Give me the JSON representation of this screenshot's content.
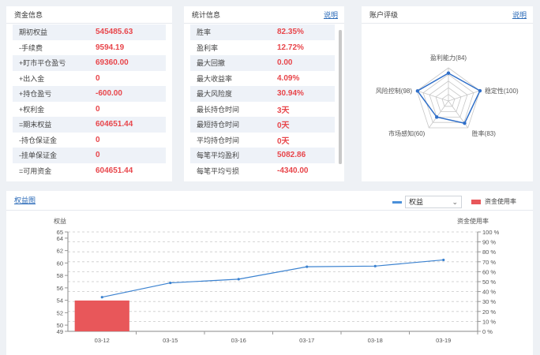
{
  "capital": {
    "title": "资金信息",
    "rows": [
      {
        "label": "期初权益",
        "value": "545485.63"
      },
      {
        "label": "-手续费",
        "value": "9594.19"
      },
      {
        "label": "+盯市平仓盈亏",
        "value": "69360.00"
      },
      {
        "label": "+出入金",
        "value": "0"
      },
      {
        "label": "+持仓盈亏",
        "value": "-600.00"
      },
      {
        "label": "+权利金",
        "value": "0"
      },
      {
        "label": "=期末权益",
        "value": "604651.44"
      },
      {
        "label": "-持仓保证金",
        "value": "0"
      },
      {
        "label": "-挂单保证金",
        "value": "0"
      },
      {
        "label": "=可用资金",
        "value": "604651.44"
      }
    ]
  },
  "stats": {
    "title": "统计信息",
    "help": "说明",
    "rows": [
      {
        "label": "胜率",
        "value": "82.35%"
      },
      {
        "label": "盈利率",
        "value": "12.72%"
      },
      {
        "label": "最大回撤",
        "value": "0.00"
      },
      {
        "label": "最大收益率",
        "value": "4.09%"
      },
      {
        "label": "最大风险度",
        "value": "30.94%"
      },
      {
        "label": "最长持仓时间",
        "value": "3天"
      },
      {
        "label": "最短持仓时间",
        "value": "0天"
      },
      {
        "label": "平均持仓时间",
        "value": "0天"
      },
      {
        "label": "每笔平均盈利",
        "value": "5082.86"
      },
      {
        "label": "每笔平均亏损",
        "value": "-4340.00"
      }
    ]
  },
  "rating": {
    "title": "账户评级",
    "help": "说明",
    "axes": [
      {
        "label": "盈利能力(84)",
        "value": 84
      },
      {
        "label": "稳定性(100)",
        "value": 100
      },
      {
        "label": "胜率(83)",
        "value": 83
      },
      {
        "label": "市场感知(60)",
        "value": 60
      },
      {
        "label": "风险控制(98)",
        "value": 98
      }
    ],
    "colors": {
      "line": "#2f6fc9",
      "grid": "#c7c7c7"
    }
  },
  "equity": {
    "title": "权益图",
    "select_value": "权益",
    "legend_margin": "资金使用率",
    "colors": {
      "line": "#3b82d0",
      "bar": "#e8575a",
      "legend_line": "#4a90d9"
    }
  },
  "chart_data": {
    "type": "line",
    "categories": [
      "03-12",
      "03-15",
      "03-16",
      "03-17",
      "03-18",
      "03-19"
    ],
    "series": [
      {
        "name": "权益",
        "type": "line",
        "axis": "left",
        "values": [
          54.5,
          56.8,
          57.4,
          59.4,
          59.5,
          60.5
        ]
      },
      {
        "name": "资金使用率",
        "type": "bar",
        "axis": "right",
        "values": [
          31,
          0,
          0,
          0,
          0,
          0
        ]
      }
    ],
    "ylabel": "权益",
    "ylabel_right": "资金使用率",
    "ylim": [
      49,
      65
    ],
    "yticks": [
      49,
      50,
      52,
      54,
      56,
      58,
      60,
      62,
      64,
      65
    ],
    "ylim_right": [
      0,
      100
    ],
    "yticks_right": [
      "0 %",
      "10 %",
      "20 %",
      "30 %",
      "40 %",
      "50 %",
      "60 %",
      "70 %",
      "80 %",
      "90 %",
      "100 %"
    ],
    "grid": true
  }
}
